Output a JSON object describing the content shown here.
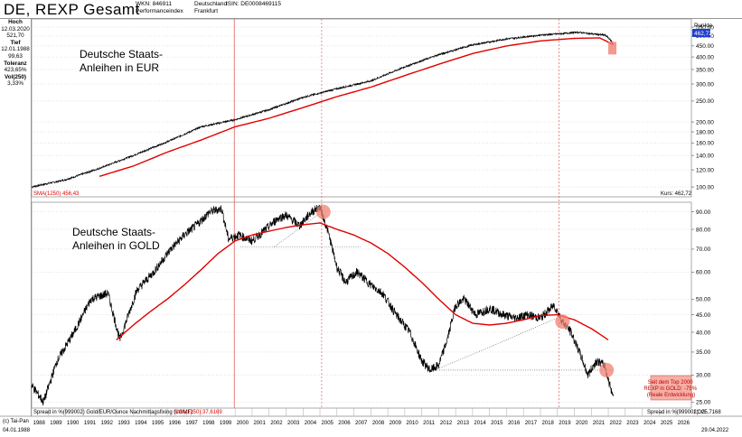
{
  "header": {
    "title": "DE, REXP  Gesamt",
    "wkn_line1": "WKN: 846911",
    "wkn_line2": "Performanceindex",
    "place_line1": "Deutschland",
    "place_line2": "Frankfurt",
    "isin": "ISIN: DE0008469115"
  },
  "sidebar": {
    "hoch_label": "Hoch",
    "hoch_date": "12.03.2020",
    "hoch_value": "521,70",
    "tief_label": "Tief",
    "tief_date": "12.01.1988",
    "tief_value": "99,63",
    "toleranz_label": "Toleranz",
    "toleranz_value": "423,65%",
    "vol_label": "Vol(250)",
    "vol_value": "3,33%"
  },
  "footer": {
    "source": "(c) Tai-Pan",
    "start_date": "04.01.1988",
    "end_date": "29.04.2022"
  },
  "chart_data": [
    {
      "type": "line",
      "title": "Deutsche Staats-\nAnleihen in EUR",
      "scale": "log",
      "ylabel": "Punkte",
      "ylim": [
        90,
        600
      ],
      "yticks": [
        100,
        120,
        140,
        160,
        180,
        200,
        250,
        300,
        350,
        400,
        450,
        500,
        550
      ],
      "last_value_label": "462,72",
      "sma_label": "SMA(1250) 456,43",
      "price_label": "Kurs: 462,72",
      "series": [
        {
          "name": "REXP",
          "x": [
            1988,
            1990,
            1992,
            1994,
            1996,
            1998,
            2000,
            2002,
            2004,
            2006,
            2008,
            2010,
            2012,
            2014,
            2016,
            2018,
            2019.5,
            2020.2,
            2021,
            2021.8,
            2022.0,
            2022.3
          ],
          "values": [
            100,
            108,
            122,
            140,
            162,
            190,
            205,
            228,
            260,
            285,
            310,
            360,
            410,
            455,
            485,
            505,
            515,
            521,
            512,
            505,
            492,
            462
          ]
        },
        {
          "name": "SMA(1250)",
          "x": [
            1992,
            1994,
            1996,
            1998,
            2000,
            2002,
            2004,
            2006,
            2008,
            2010,
            2012,
            2014,
            2016,
            2018,
            2020,
            2021.5,
            2022.3
          ],
          "values": [
            112,
            125,
            145,
            165,
            190,
            208,
            233,
            262,
            290,
            328,
            370,
            415,
            450,
            475,
            488,
            490,
            456
          ]
        }
      ]
    },
    {
      "type": "line",
      "title": "Deutsche Staats-\nAnleihen in GOLD",
      "scale": "log",
      "ylim": [
        24,
        96
      ],
      "yticks": [
        25,
        30,
        35,
        40,
        45,
        50,
        60,
        70,
        80,
        90
      ],
      "series_label": "Spread in %(999002) Gold/EUR/Ounce Nachmittagsfixing (LGMF)",
      "sma_label": "SMA(1250) 37,6169",
      "spread_label": "Spread in %(999002): 25,7168",
      "axis_mode": "LOG",
      "annotation": "Seit dem Top 2000\nREXP in GOLD: -75%\n(Reale Entwicklung)",
      "series": [
        {
          "name": "REXP/Gold",
          "x": [
            1988,
            1988.7,
            1989.5,
            1990.5,
            1991.5,
            1992.5,
            1993.2,
            1994.2,
            1995.2,
            1996.2,
            1997.0,
            1997.8,
            1998.5,
            1999.2,
            1999.6,
            2000.2,
            2001.0,
            2001.8,
            2002.5,
            2003.0,
            2003.8,
            2004.5,
            2005.0,
            2005.5,
            2006.0,
            2006.5,
            2007.2,
            2008.0,
            2008.7,
            2009.5,
            2010.3,
            2011.0,
            2011.5,
            2012.0,
            2012.5,
            2013.0,
            2013.5,
            2014.2,
            2015.0,
            2015.8,
            2016.5,
            2017.2,
            2018.0,
            2018.8,
            2019.3,
            2019.8,
            2020.3,
            2020.8,
            2021.3,
            2021.8,
            2022.0,
            2022.3
          ],
          "values": [
            28,
            25,
            33,
            40,
            50,
            52,
            38,
            53,
            60,
            70,
            77,
            83,
            90,
            92,
            75,
            77,
            74,
            80,
            86,
            88,
            82,
            90,
            93,
            78,
            62,
            56,
            60,
            55,
            52,
            45,
            40,
            33,
            31,
            32,
            38,
            48,
            50,
            45,
            47,
            45,
            44,
            45,
            44,
            48,
            43,
            40,
            35,
            30,
            33,
            32,
            29,
            26
          ]
        },
        {
          "name": "SMA(1250)",
          "x": [
            1993,
            1994,
            1995,
            1996,
            1997,
            1998,
            1999,
            2000,
            2001,
            2002,
            2003,
            2004,
            2005,
            2006,
            2007,
            2008,
            2009,
            2010,
            2011,
            2012,
            2013,
            2014,
            2015,
            2016,
            2017,
            2018,
            2019,
            2020,
            2021,
            2022
          ],
          "values": [
            38,
            42,
            46,
            50,
            55,
            61,
            68,
            74,
            77,
            79,
            81,
            82.5,
            83.5,
            80,
            77,
            73,
            68,
            62,
            56,
            50,
            45,
            42.5,
            42,
            42.5,
            43.5,
            44.8,
            45,
            43.5,
            41,
            38
          ]
        }
      ]
    }
  ],
  "x_axis": {
    "years": [
      "1988",
      "1989",
      "1990",
      "1991",
      "1992",
      "1993",
      "1994",
      "1995",
      "1996",
      "1997",
      "1998",
      "1999",
      "2000",
      "2001",
      "2002",
      "2003",
      "2004",
      "2005",
      "2006",
      "2007",
      "2008",
      "2009",
      "2010",
      "2011",
      "2012",
      "2013",
      "2014",
      "2015",
      "2016",
      "2017",
      "2018",
      "2019",
      "2020",
      "2021",
      "2022",
      "2023",
      "2024",
      "2025",
      "2026"
    ]
  },
  "colors": {
    "price": "#000000",
    "sma": "#e00000",
    "marker": "#f08070",
    "label_blue": "#1f3fd0"
  }
}
